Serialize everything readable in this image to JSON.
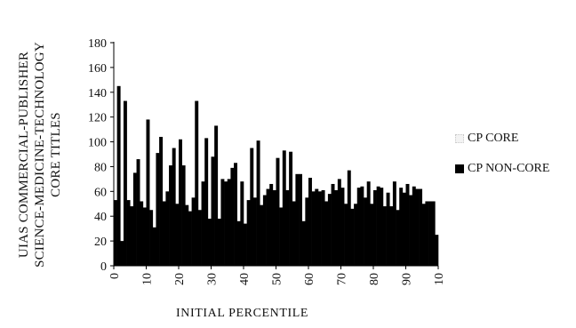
{
  "chart_data": {
    "type": "bar",
    "ylabel_lines": [
      "UIAS COMMERCIAL-PUBLISHER",
      "SCIENCE-MEDICINE-TECHNOLOGY",
      "CORE  TITLES"
    ],
    "xlabel": "INITIAL PERCENTILE",
    "ylim": [
      0,
      180
    ],
    "yticks": [
      "0",
      "20",
      "40",
      "60",
      "80",
      "100",
      "120",
      "140",
      "160",
      "180"
    ],
    "xticks": [
      "0",
      "10",
      "20",
      "30",
      "40",
      "50",
      "60",
      "70",
      "80",
      "90",
      "10"
    ],
    "legend_position": "right",
    "grid": false,
    "series": [
      {
        "name": "CP CORE",
        "color": "#f2f2f2",
        "values": [
          0,
          0,
          0,
          0,
          0,
          0,
          0,
          0,
          0,
          0,
          0,
          0,
          0,
          0,
          0,
          0,
          0,
          0,
          0,
          0,
          0,
          0,
          0,
          0,
          0,
          0,
          0,
          0,
          0,
          0,
          0,
          0,
          0,
          0,
          0,
          0,
          0,
          0,
          0,
          0,
          0,
          0,
          0,
          0,
          0,
          0,
          0,
          0,
          0,
          0,
          0,
          0,
          0,
          0,
          0,
          0,
          0,
          0,
          0,
          0,
          0,
          0,
          0,
          0,
          0,
          0,
          0,
          0,
          0,
          0,
          0,
          0,
          0,
          0,
          0,
          0,
          0,
          0,
          0,
          0,
          0,
          0,
          0,
          0,
          0,
          0,
          0,
          0,
          0,
          0,
          0,
          0,
          0,
          0,
          0,
          0,
          0,
          0,
          0,
          0
        ]
      },
      {
        "name": "CP NON-CORE",
        "color": "#000000",
        "values": [
          53,
          145,
          20,
          133,
          53,
          48,
          75,
          86,
          52,
          47,
          118,
          45,
          31,
          91,
          104,
          52,
          60,
          81,
          95,
          50,
          102,
          81,
          49,
          44,
          55,
          133,
          45,
          68,
          103,
          38,
          88,
          113,
          38,
          70,
          68,
          70,
          79,
          83,
          36,
          68,
          34,
          53,
          95,
          55,
          101,
          49,
          57,
          62,
          66,
          61,
          87,
          47,
          93,
          61,
          92,
          52,
          74,
          74,
          36,
          55,
          71,
          60,
          62,
          60,
          61,
          52,
          58,
          66,
          61,
          70,
          63,
          50,
          77,
          46,
          50,
          63,
          64,
          55,
          68,
          50,
          61,
          64,
          63,
          48,
          59,
          48,
          68,
          45,
          63,
          59,
          66,
          57,
          64,
          62,
          62,
          50,
          52,
          52,
          52,
          25
        ]
      }
    ]
  },
  "legend": {
    "core_label": "CP CORE",
    "noncore_label": "CP NON-CORE"
  }
}
